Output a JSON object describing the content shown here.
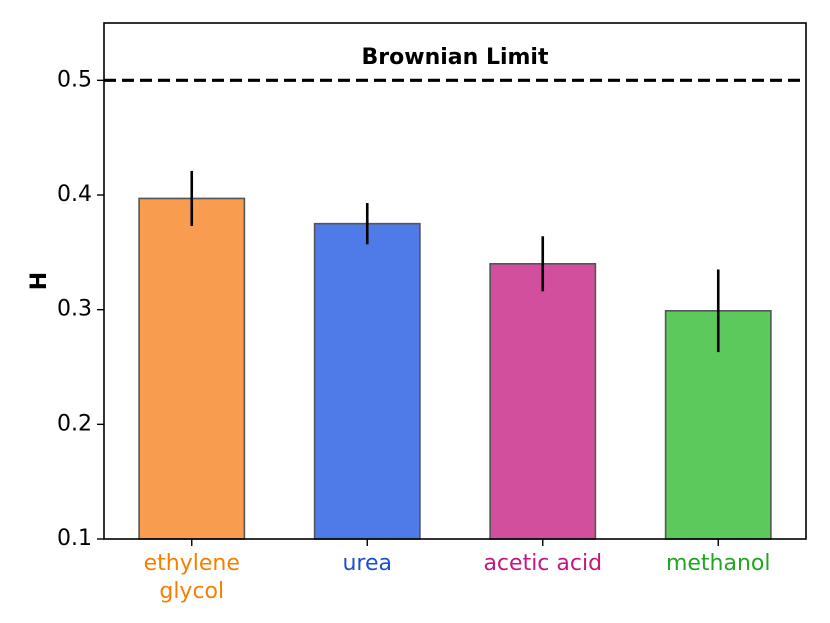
{
  "chart_data": {
    "type": "bar",
    "categories": [
      {
        "lines": [
          "ethylene",
          "glycol"
        ],
        "color": "#f77f00"
      },
      {
        "lines": [
          "urea"
        ],
        "color": "#1f4fd0"
      },
      {
        "lines": [
          "acetic acid"
        ],
        "color": "#c4187e"
      },
      {
        "lines": [
          "methanol"
        ],
        "color": "#1fa81f"
      }
    ],
    "values": [
      0.397,
      0.375,
      0.34,
      0.299
    ],
    "error": [
      0.024,
      0.018,
      0.024,
      0.036
    ],
    "bar_colors": [
      "#f89c4f",
      "#4f7be8",
      "#d24f9e",
      "#5cc95c"
    ],
    "bar_edge_color": "#555555",
    "ylabel": "H",
    "ylim": [
      0.1,
      0.55
    ],
    "yticks": [
      "0.1",
      "0.2",
      "0.3",
      "0.4",
      "0.5"
    ],
    "reference_line": {
      "value": 0.5,
      "label": "Brownian Limit",
      "style": "dashed"
    },
    "grid": false,
    "legend": "none"
  }
}
